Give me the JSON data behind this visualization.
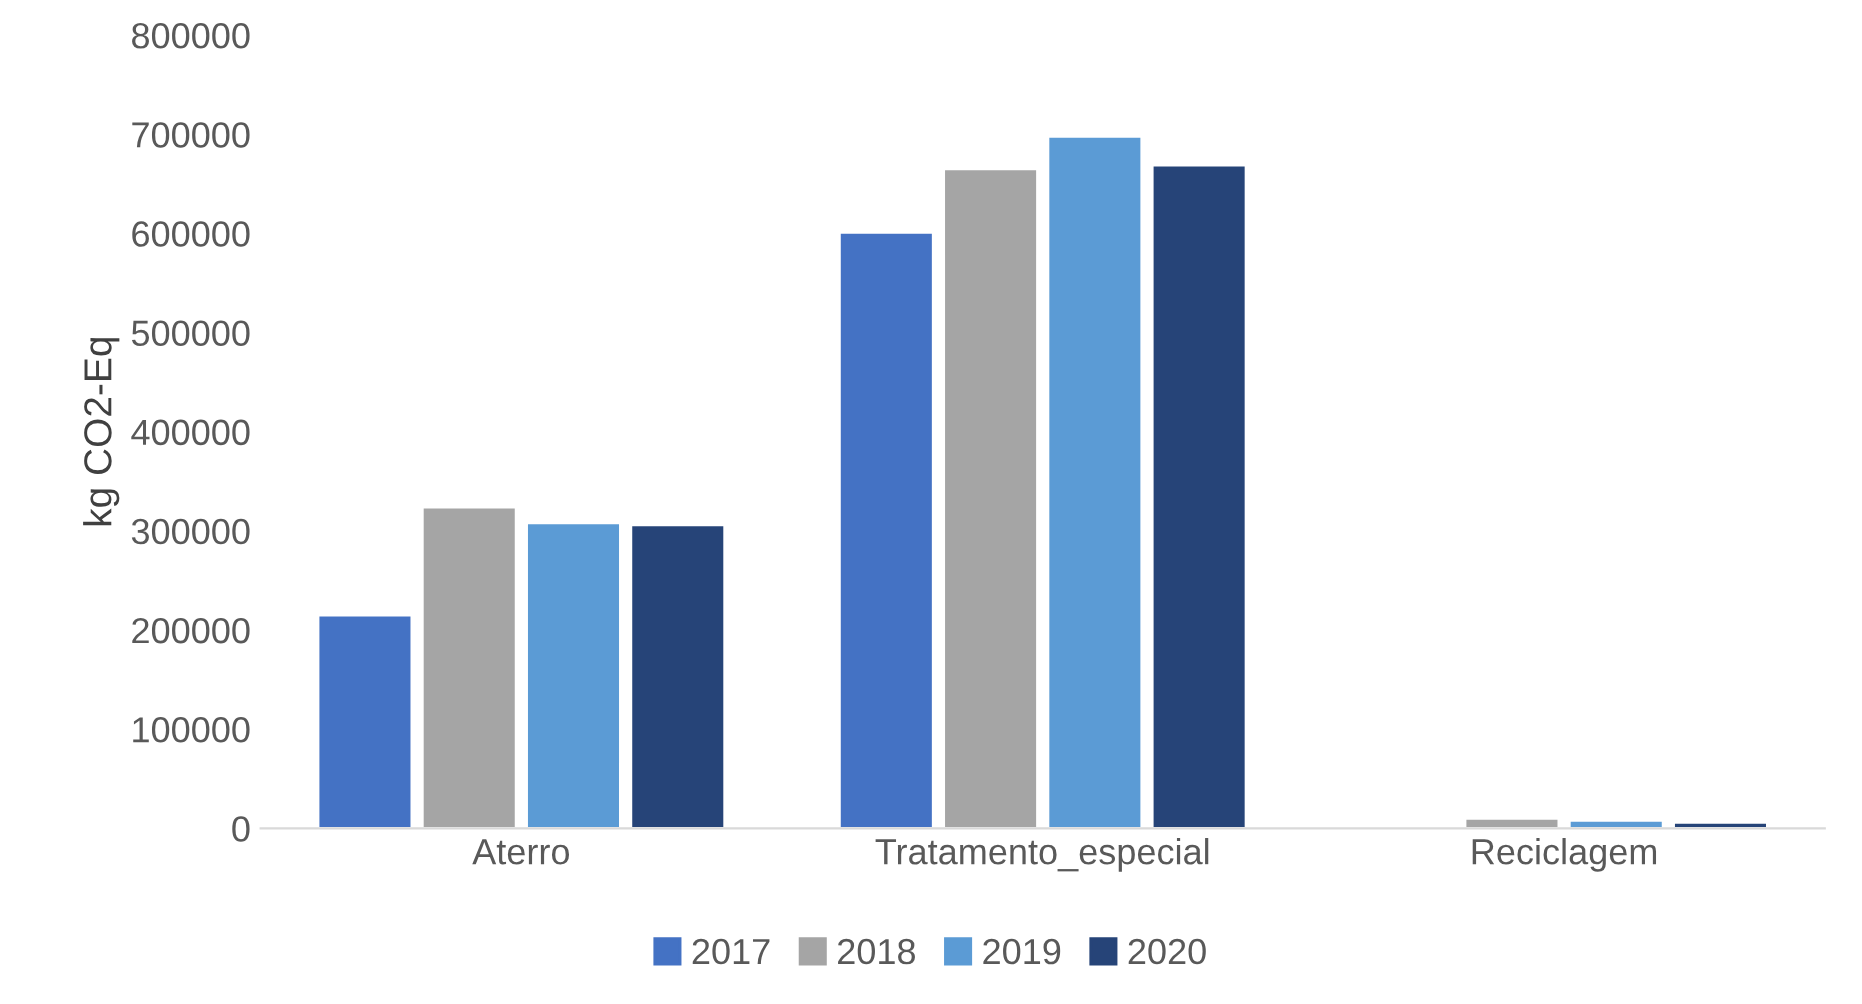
{
  "chart_data": {
    "type": "bar",
    "ylabel": "kg CO2-Eq",
    "categories": [
      "Aterro",
      "Tratamento_especial",
      "Reciclagem"
    ],
    "series": [
      {
        "name": "2017",
        "color": "#4472c4",
        "values": [
          215000,
          601000,
          null
        ]
      },
      {
        "name": "2018",
        "color": "#a5a5a5",
        "values": [
          324000,
          665000,
          10000
        ]
      },
      {
        "name": "2019",
        "color": "#5b9bd5",
        "values": [
          308000,
          698000,
          8000
        ]
      },
      {
        "name": "2020",
        "color": "#264478",
        "values": [
          306000,
          669000,
          6000
        ]
      }
    ],
    "ylim": [
      0,
      800000
    ],
    "yticks": [
      0,
      100000,
      200000,
      300000,
      400000,
      500000,
      600000,
      700000,
      800000
    ],
    "grid": false,
    "legend": "bottom"
  }
}
